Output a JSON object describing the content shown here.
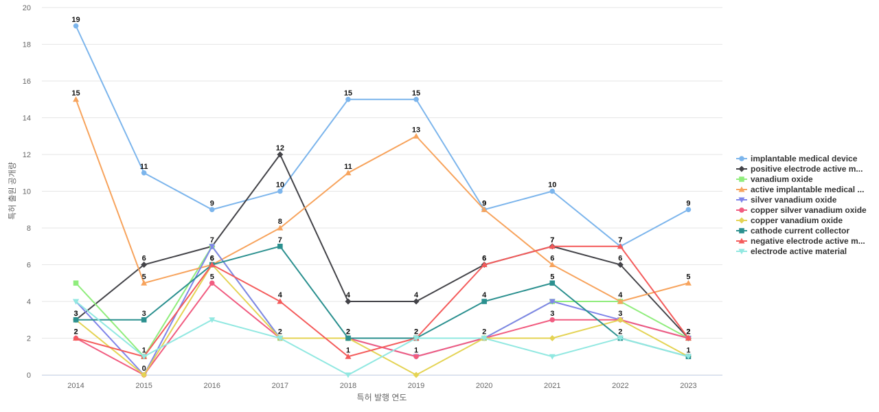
{
  "chart_data": {
    "type": "line",
    "x": [
      "2014",
      "2015",
      "2016",
      "2017",
      "2018",
      "2019",
      "2020",
      "2021",
      "2022",
      "2023"
    ],
    "xlabel": "특허 발행 연도",
    "ylabel": "특허 출원 공개량",
    "ylim": [
      0,
      20
    ],
    "yticks": [
      "0",
      "2",
      "4",
      "6",
      "8",
      "10",
      "12",
      "14",
      "16",
      "18",
      "20"
    ],
    "grid": true,
    "legend_position": "right",
    "label_series": [
      0,
      1,
      3,
      5,
      7,
      8
    ],
    "series": [
      {
        "name": "implantable medical device",
        "color": "#7cb5ec",
        "marker": "circle",
        "values": [
          19,
          11,
          9,
          10,
          15,
          15,
          9,
          10,
          7,
          9
        ]
      },
      {
        "name": "positive electrode active m...",
        "color": "#434348",
        "marker": "diamond",
        "values": [
          3,
          6,
          7,
          12,
          4,
          4,
          6,
          7,
          6,
          2
        ]
      },
      {
        "name": "vanadium oxide",
        "color": "#90ed7d",
        "marker": "square",
        "values": [
          5,
          1,
          7,
          2,
          2,
          2,
          2,
          4,
          4,
          2
        ]
      },
      {
        "name": "active implantable medical ...",
        "color": "#f7a35c",
        "marker": "triangle",
        "values": [
          15,
          5,
          6,
          8,
          11,
          13,
          9,
          6,
          4,
          5
        ]
      },
      {
        "name": "silver vanadium oxide",
        "color": "#8085e9",
        "marker": "triangle-down",
        "values": [
          4,
          0,
          7,
          2,
          2,
          1,
          2,
          4,
          3,
          2
        ]
      },
      {
        "name": "copper silver vanadium oxide",
        "color": "#f15c80",
        "marker": "circle",
        "values": [
          2,
          0,
          5,
          2,
          2,
          1,
          2,
          3,
          3,
          2
        ]
      },
      {
        "name": "copper vanadium oxide",
        "color": "#e4d354",
        "marker": "diamond",
        "values": [
          3,
          0,
          6,
          2,
          2,
          0,
          2,
          2,
          3,
          1
        ]
      },
      {
        "name": "cathode current collector",
        "color": "#2b908f",
        "marker": "square",
        "values": [
          3,
          3,
          6,
          7,
          2,
          2,
          4,
          5,
          2,
          1
        ]
      },
      {
        "name": "negative electrode active m...",
        "color": "#f45b5b",
        "marker": "triangle",
        "values": [
          2,
          1,
          6,
          4,
          1,
          2,
          6,
          7,
          7,
          2
        ]
      },
      {
        "name": "electrode active material",
        "color": "#91e8e1",
        "marker": "triangle-down",
        "values": [
          4,
          1,
          3,
          2,
          0,
          2,
          2,
          1,
          2,
          1
        ]
      }
    ]
  }
}
